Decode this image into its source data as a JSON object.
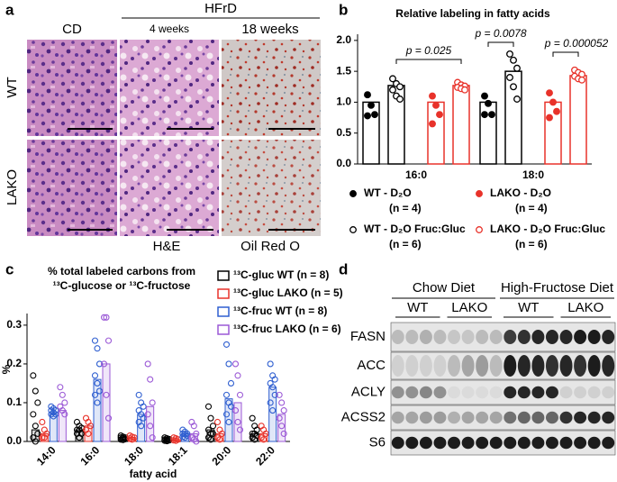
{
  "panel_a": {
    "letter": "a",
    "group_header": "HFrD",
    "columns": [
      "CD",
      "4 weeks",
      "18 weeks"
    ],
    "rows": [
      "WT",
      "LAKO"
    ],
    "stains": [
      "H&E",
      "Oil Red O"
    ]
  },
  "panel_d": {
    "letter": "d",
    "groups": [
      {
        "label": "Chow Diet",
        "genotypes": [
          {
            "label": "WT",
            "color": "#000000"
          },
          {
            "label": "LAKO",
            "color": "#e8322a"
          }
        ]
      },
      {
        "label": "High-Fructose Diet",
        "genotypes": [
          {
            "label": "WT",
            "color": "#2a45d8"
          },
          {
            "label": "LAKO",
            "color": "#8a3fc8"
          }
        ]
      }
    ],
    "proteins": [
      "FASN",
      "ACC",
      "ACLY",
      "ACSS2",
      "S6"
    ]
  },
  "chart_data": [
    {
      "type": "bar",
      "letter": "b",
      "title": "Relative labeling in fatty acids",
      "categories": [
        "16:0",
        "18:0"
      ],
      "ylim": [
        0,
        2.1
      ],
      "yticks": [
        {
          "value": 0,
          "label": "0.0"
        },
        0.5,
        {
          "value": 1,
          "label": "1.0"
        },
        1.5,
        {
          "value": 2,
          "label": "2.0"
        }
      ],
      "series": [
        {
          "name": "WT - D₂O",
          "n": "(n = 4)",
          "color": "#000000",
          "filled": true,
          "values": [
            1.0,
            1.0
          ],
          "points": [
            [
              1.12,
              0.95,
              0.8,
              0.78
            ],
            [
              1.1,
              0.98,
              0.8,
              0.8
            ]
          ]
        },
        {
          "name": "WT - D₂O Fruc:Gluc",
          "n": "(n = 6)",
          "color": "#000000",
          "filled": false,
          "values": [
            1.27,
            1.5
          ],
          "points": [
            [
              1.38,
              1.3,
              1.25,
              1.2,
              1.1,
              1.05
            ],
            [
              1.78,
              1.68,
              1.55,
              1.4,
              1.25,
              1.05
            ]
          ]
        },
        {
          "name": "LAKO - D₂O",
          "n": "(n = 4)",
          "color": "#e8322a",
          "filled": true,
          "values": [
            1.0,
            1.0
          ],
          "points": [
            [
              1.1,
              0.95,
              0.8,
              0.65
            ],
            [
              1.15,
              1.0,
              0.85,
              0.75
            ]
          ]
        },
        {
          "name": "LAKO - D₂O Fruc:Gluc",
          "n": "(n = 6)",
          "color": "#e8322a",
          "filled": false,
          "values": [
            1.27,
            1.43
          ],
          "points": [
            [
              1.32,
              1.28,
              1.26,
              1.24,
              1.22,
              1.2
            ],
            [
              1.52,
              1.48,
              1.45,
              1.42,
              1.38,
              1.36
            ]
          ]
        }
      ],
      "annotations": [
        "p = 0.025",
        "p = 0.0078",
        "p = 0.000052"
      ]
    },
    {
      "type": "bar",
      "letter": "c",
      "title": [
        "%  total labeled carbons from",
        "¹³C-glucose or ¹³C-fructose"
      ],
      "ylabel": "%",
      "xlabel": "fatty acid",
      "categories": [
        "14:0",
        "16:0",
        "18:0",
        "18:1",
        "20:0",
        "22:0"
      ],
      "ylim": [
        0,
        0.33
      ],
      "yticks": [
        {
          "value": 0,
          "label": "0.0"
        },
        0.1,
        0.2,
        0.3
      ],
      "series": [
        {
          "name": "¹³C-gluc WT (n = 8)",
          "color": "#000000",
          "values": [
            0.03,
            0.03,
            0.01,
            0.005,
            0.03,
            0.02
          ],
          "points": [
            [
              0.17,
              0.13,
              0.1,
              0.07,
              0.04,
              0.02,
              0.01,
              0.0
            ],
            [
              0.05,
              0.04,
              0.035,
              0.03,
              0.03,
              0.02,
              0.02,
              0.01
            ],
            [
              0.015,
              0.012,
              0.01,
              0.01,
              0.008,
              0.006,
              0.005,
              0.004
            ],
            [
              0.01,
              0.008,
              0.006,
              0.005,
              0.004,
              0.003,
              0.002,
              0.001
            ],
            [
              0.09,
              0.06,
              0.04,
              0.03,
              0.02,
              0.02,
              0.01,
              0.005
            ],
            [
              0.06,
              0.04,
              0.03,
              0.02,
              0.02,
              0.015,
              0.01,
              0.005
            ]
          ]
        },
        {
          "name": "¹³C-gluc LAKO (n = 5)",
          "color": "#e8322a",
          "values": [
            0.02,
            0.04,
            0.01,
            0.005,
            0.02,
            0.02
          ],
          "points": [
            [
              0.05,
              0.03,
              0.02,
              0.01,
              0.01
            ],
            [
              0.06,
              0.05,
              0.04,
              0.03,
              0.02
            ],
            [
              0.015,
              0.012,
              0.01,
              0.008,
              0.005
            ],
            [
              0.01,
              0.008,
              0.005,
              0.003,
              0.002
            ],
            [
              0.05,
              0.03,
              0.02,
              0.01,
              0.005
            ],
            [
              0.04,
              0.03,
              0.02,
              0.01,
              0.005
            ]
          ]
        },
        {
          "name": "¹³C-fruc WT (n = 8)",
          "color": "#2f5fd0",
          "values": [
            0.07,
            0.16,
            0.07,
            0.02,
            0.11,
            0.14
          ],
          "points": [
            [
              0.09,
              0.085,
              0.08,
              0.08,
              0.075,
              0.07,
              0.07,
              0.065
            ],
            [
              0.26,
              0.24,
              0.2,
              0.17,
              0.15,
              0.13,
              0.12,
              0.1
            ],
            [
              0.12,
              0.1,
              0.09,
              0.08,
              0.07,
              0.06,
              0.05,
              0.04
            ],
            [
              0.03,
              0.025,
              0.02,
              0.02,
              0.018,
              0.015,
              0.012,
              0.01
            ],
            [
              0.25,
              0.2,
              0.15,
              0.12,
              0.1,
              0.09,
              0.07,
              0.05
            ],
            [
              0.2,
              0.17,
              0.16,
              0.15,
              0.14,
              0.12,
              0.1,
              0.08
            ]
          ]
        },
        {
          "name": "¹³C-fruc LAKO (n = 6)",
          "color": "#9b59d6",
          "values": [
            0.08,
            0.2,
            0.09,
            0.02,
            0.1,
            0.07
          ],
          "points": [
            [
              0.14,
              0.12,
              0.1,
              0.09,
              0.08,
              0.07
            ],
            [
              0.32,
              0.32,
              0.26,
              0.2,
              0.12,
              0.06
            ],
            [
              0.2,
              0.16,
              0.1,
              0.07,
              0.04,
              0.01
            ],
            [
              0.05,
              0.04,
              0.02,
              0.01,
              0.005,
              0.0
            ],
            [
              0.2,
              0.17,
              0.12,
              0.08,
              0.05,
              0.03
            ],
            [
              0.12,
              0.1,
              0.08,
              0.06,
              0.04,
              0.02
            ]
          ]
        }
      ]
    }
  ]
}
